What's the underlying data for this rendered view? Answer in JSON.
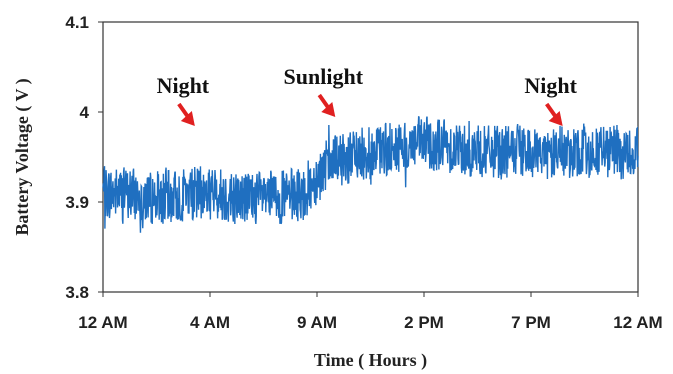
{
  "chart_data": {
    "type": "line",
    "title": "",
    "xlabel": "Time ( Hours )",
    "ylabel": "Battery Voltage ( V )",
    "x_ticks": [
      "12 AM",
      "4 AM",
      "9 AM",
      "2 PM",
      "7 PM",
      "12 AM"
    ],
    "y_ticks": [
      "3.8",
      "3.9",
      "4",
      "4.1"
    ],
    "ylim": [
      3.8,
      4.1
    ],
    "xlim_hours": [
      0,
      24
    ],
    "grid": false,
    "series_color": "#1f6fc0",
    "series": [
      {
        "x_hours": [
          0,
          1,
          2,
          3,
          4,
          5,
          6,
          7,
          8,
          9,
          9.5,
          10,
          10.5,
          11,
          12,
          13,
          14,
          15,
          16,
          17,
          18,
          19,
          20,
          21,
          22,
          23,
          24
        ],
        "values": [
          3.91,
          3.91,
          3.905,
          3.905,
          3.91,
          3.91,
          3.905,
          3.905,
          3.905,
          3.91,
          3.925,
          3.94,
          3.945,
          3.95,
          3.955,
          3.96,
          3.965,
          3.965,
          3.96,
          3.955,
          3.955,
          3.955,
          3.955,
          3.955,
          3.955,
          3.955,
          3.955
        ],
        "noise_band": 0.03
      }
    ],
    "annotations": [
      {
        "text": "Night",
        "x_hours": 4.3,
        "y": 3.98
      },
      {
        "text": "Sunlight",
        "x_hours": 10.6,
        "y": 3.99
      },
      {
        "text": "Night",
        "x_hours": 20.8,
        "y": 3.98
      }
    ],
    "annotation_color": "#e02020"
  }
}
